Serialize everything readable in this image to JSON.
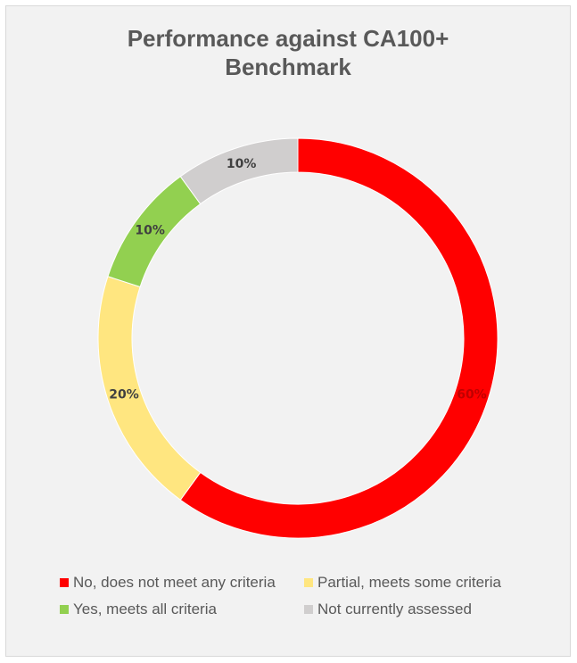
{
  "chart_data": {
    "type": "pie",
    "variant": "donut",
    "title_lines": [
      "Performance against CA100+",
      "Benchmark"
    ],
    "slices": [
      {
        "label": "No, does not meet any criteria",
        "value": 60,
        "display": "60%",
        "color": "#ff0000",
        "label_color": "#c00000"
      },
      {
        "label": "Partial, meets some criteria",
        "value": 20,
        "display": "20%",
        "color": "#ffe680",
        "label_color": "#404040"
      },
      {
        "label": "Yes, meets all criteria",
        "value": 10,
        "display": "10%",
        "color": "#92d050",
        "label_color": "#404040"
      },
      {
        "label": "Not currently assessed",
        "value": 10,
        "display": "10%",
        "color": "#d0cece",
        "label_color": "#404040"
      }
    ],
    "legend_position": "bottom"
  }
}
